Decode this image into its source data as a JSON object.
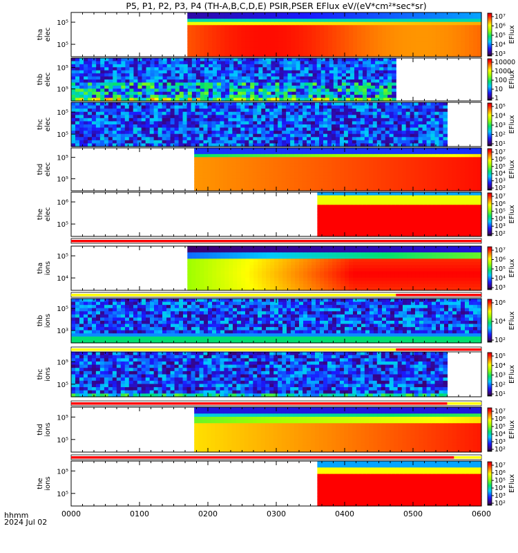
{
  "title": "P5, P1, P2, P3, P4 (TH-A,B,C,D,E) PSIR,PSER EFlux eV/(eV*cm²*sec*sr)",
  "x_axis": {
    "tick_labels": [
      "0000",
      "0100",
      "0200",
      "0300",
      "0400",
      "0500",
      "0600"
    ],
    "unit_label": "hhmm",
    "date_label": "2024 Jul 02"
  },
  "colorbar_title": "EFlux",
  "chart_data": [
    {
      "type": "heatmap",
      "panel": "tha_elec",
      "ylabel": [
        "tha",
        "elec"
      ],
      "ytick_labels": [
        "10⁵",
        "10⁵"
      ],
      "colorbar_ticks": [
        "10⁷",
        "10⁶",
        "10⁵",
        "10⁴",
        "10³"
      ],
      "data_start_hhmm": "0142",
      "data_end_hhmm": "0600",
      "sample_bands": [
        {
          "level": 0.92,
          "start": "0142",
          "end": "0530"
        },
        {
          "level": 0.85,
          "start": "0142",
          "end": "0530"
        },
        {
          "level": 0.35,
          "start": "0530",
          "end": "0600"
        }
      ]
    },
    {
      "type": "heatmap",
      "panel": "thb_elec",
      "ylabel": [
        "thb",
        "elec"
      ],
      "ytick_labels": [
        "10⁵",
        "10⁵"
      ],
      "colorbar_ticks": [
        "10000",
        "1000",
        "100",
        "10",
        "1"
      ],
      "data_start_hhmm": "0000",
      "data_end_hhmm": "0445"
    },
    {
      "type": "heatmap",
      "panel": "thc_elec",
      "ylabel": [
        "thc",
        "elec"
      ],
      "ytick_labels": [
        "10⁵",
        "10⁵"
      ],
      "colorbar_ticks": [
        "10⁵",
        "10⁴",
        "10³",
        "10²",
        "10¹"
      ],
      "data_start_hhmm": "0000",
      "data_end_hhmm": "0530"
    },
    {
      "type": "heatmap",
      "panel": "thd_elec",
      "ylabel": [
        "thd",
        "elec"
      ],
      "ytick_labels": [
        "10⁵",
        "10⁵"
      ],
      "colorbar_ticks": [
        "10⁷",
        "10⁶",
        "10⁵",
        "10⁴",
        "10³",
        "10²"
      ],
      "data_start_hhmm": "0148",
      "data_end_hhmm": "0600"
    },
    {
      "type": "heatmap",
      "panel": "the_elec",
      "ylabel": [
        "the",
        "elec"
      ],
      "ytick_labels": [
        "10⁶",
        "10⁵"
      ],
      "colorbar_ticks": [
        "10⁷",
        "10⁶",
        "10⁵",
        "10⁴",
        "10³",
        "10²"
      ],
      "data_start_hhmm": "0336",
      "data_end_hhmm": "0600"
    },
    {
      "type": "heatmap",
      "panel": "tha_ions",
      "ylabel": [
        "tha",
        "ions"
      ],
      "ytick_labels": [
        "10⁵",
        "10⁴"
      ],
      "colorbar_ticks": [
        "10⁷",
        "10⁶",
        "10⁵",
        "10⁴",
        "10³"
      ],
      "data_start_hhmm": "0142",
      "data_end_hhmm": "0600"
    },
    {
      "type": "heatmap",
      "panel": "thb_ions",
      "ylabel": [
        "thb",
        "ions"
      ],
      "ytick_labels": [
        "10⁵",
        "10³"
      ],
      "colorbar_ticks": [
        "10⁶",
        "10⁴",
        "10²"
      ],
      "data_start_hhmm": "0000",
      "data_end_hhmm": "0600"
    },
    {
      "type": "heatmap",
      "panel": "thc_ions",
      "ylabel": [
        "thc",
        "ions"
      ],
      "ytick_labels": [
        "10⁵",
        "10⁵"
      ],
      "colorbar_ticks": [
        "10⁵",
        "10⁴",
        "10³",
        "10²",
        "10¹"
      ],
      "data_start_hhmm": "0000",
      "data_end_hhmm": "0530"
    },
    {
      "type": "heatmap",
      "panel": "thd_ions",
      "ylabel": [
        "thd",
        "ions"
      ],
      "ytick_labels": [
        "10⁵",
        "10⁵"
      ],
      "colorbar_ticks": [
        "10⁷",
        "10⁶",
        "10⁵",
        "10⁴",
        "10³",
        "10²"
      ],
      "data_start_hhmm": "0148",
      "data_end_hhmm": "0600"
    },
    {
      "type": "heatmap",
      "panel": "the_ions",
      "ylabel": [
        "the",
        "ions"
      ],
      "ytick_labels": [
        "10⁵",
        "10⁵"
      ],
      "colorbar_ticks": [
        "10⁷",
        "10⁶",
        "10⁵",
        "10⁴",
        "10³",
        "10²"
      ],
      "data_start_hhmm": "0336",
      "data_end_hhmm": "0600"
    }
  ],
  "mode_bars": [
    {
      "after_panel": "the_elec",
      "segments": [
        {
          "color": "#ff0000",
          "start": "0000",
          "end": "0600"
        }
      ]
    },
    {
      "after_panel": "tha_ions",
      "segments": [
        {
          "color": "#ffff00",
          "start": "0000",
          "end": "0445"
        },
        {
          "color": "#ff0000",
          "start": "0445",
          "end": "0600"
        }
      ]
    },
    {
      "after_panel": "thb_ions",
      "segments": [
        {
          "color": "#ffff00",
          "start": "0000",
          "end": "0445"
        },
        {
          "color": "#ff0000",
          "start": "0445",
          "end": "0600"
        }
      ]
    },
    {
      "after_panel": "thc_ions",
      "segments": [
        {
          "color": "#ff0000",
          "start": "0000",
          "end": "0530"
        },
        {
          "color": "#ffff00",
          "start": "0530",
          "end": "0600"
        }
      ]
    },
    {
      "after_panel": "thd_ions",
      "segments": [
        {
          "color": "#ff0000",
          "start": "0000",
          "end": "0536"
        },
        {
          "color": "#ffff00",
          "start": "0536",
          "end": "0600"
        }
      ]
    }
  ]
}
